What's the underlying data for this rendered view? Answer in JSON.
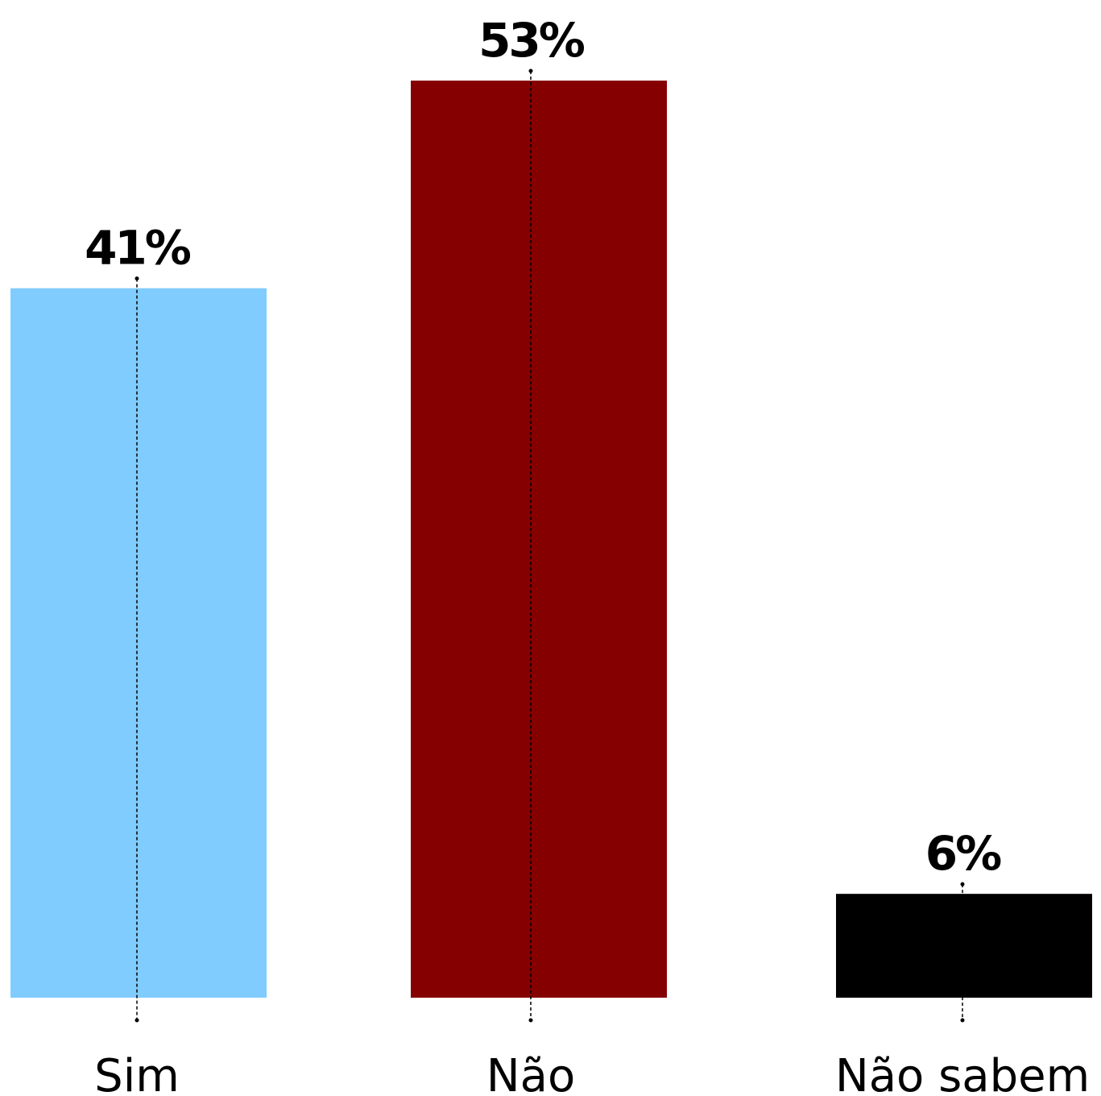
{
  "chart_data": {
    "type": "bar",
    "categories": [
      "Sim",
      "Não",
      "Não sabem"
    ],
    "values": [
      41,
      53,
      6
    ],
    "value_labels": [
      "41%",
      "53%",
      "6%"
    ],
    "colors": [
      "#80ccff",
      "#850000",
      "#000000"
    ],
    "ylim": [
      0,
      53
    ]
  }
}
